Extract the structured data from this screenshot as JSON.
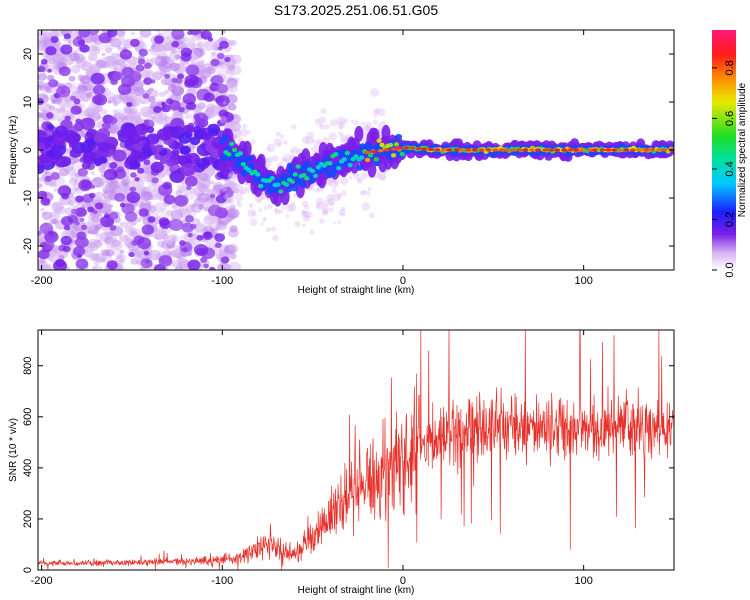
{
  "title": "S173.2025.251.06.51.G05",
  "chart_data": [
    {
      "type": "heatmap",
      "xlabel": "Height of straight line (km)",
      "ylabel": "Frequency (Hz)",
      "xlim": [
        -202,
        150
      ],
      "ylim": [
        -25,
        25
      ],
      "xticks": [
        -200,
        -100,
        0,
        100
      ],
      "yticks": [
        -20,
        -10,
        0,
        10,
        20
      ],
      "colorbar": {
        "label": "Normalized spectral amplitude",
        "ticks": [
          0.0,
          0.2,
          0.4,
          0.6,
          0.8
        ],
        "range": [
          0,
          0.95
        ]
      },
      "track_center_hz": [
        {
          "x": -100,
          "y": 0.5
        },
        {
          "x": -90,
          "y": -1.5
        },
        {
          "x": -80,
          "y": -6
        },
        {
          "x": -70,
          "y": -7.5
        },
        {
          "x": -60,
          "y": -5.5
        },
        {
          "x": -50,
          "y": -5
        },
        {
          "x": -40,
          "y": -3
        },
        {
          "x": -30,
          "y": -1.5
        },
        {
          "x": -20,
          "y": -0.5
        },
        {
          "x": -10,
          "y": 0
        },
        {
          "x": 0,
          "y": 0.5
        },
        {
          "x": 20,
          "y": 0
        },
        {
          "x": 50,
          "y": 0
        },
        {
          "x": 100,
          "y": 0
        },
        {
          "x": 150,
          "y": 0
        }
      ]
    },
    {
      "type": "line",
      "xlabel": "Height of straight line (km)",
      "ylabel": "SNR (10 * v/v)",
      "xlim": [
        -202,
        150
      ],
      "ylim": [
        0,
        940
      ],
      "xticks": [
        -200,
        -100,
        0,
        100
      ],
      "yticks": [
        0,
        200,
        400,
        600,
        800
      ],
      "color": "#e8302a",
      "trend": [
        {
          "x": -202,
          "y": 25
        },
        {
          "x": -150,
          "y": 30
        },
        {
          "x": -110,
          "y": 35
        },
        {
          "x": -90,
          "y": 50
        },
        {
          "x": -75,
          "y": 100
        },
        {
          "x": -60,
          "y": 60
        },
        {
          "x": -50,
          "y": 130
        },
        {
          "x": -40,
          "y": 200
        },
        {
          "x": -30,
          "y": 280
        },
        {
          "x": -20,
          "y": 320
        },
        {
          "x": -10,
          "y": 380
        },
        {
          "x": 0,
          "y": 430
        },
        {
          "x": 10,
          "y": 480
        },
        {
          "x": 20,
          "y": 520
        },
        {
          "x": 30,
          "y": 545
        },
        {
          "x": 50,
          "y": 560
        },
        {
          "x": 70,
          "y": 560
        },
        {
          "x": 90,
          "y": 555
        },
        {
          "x": 110,
          "y": 555
        },
        {
          "x": 130,
          "y": 550
        },
        {
          "x": 150,
          "y": 545
        }
      ],
      "peak": {
        "x": 98,
        "y": 940
      }
    }
  ]
}
